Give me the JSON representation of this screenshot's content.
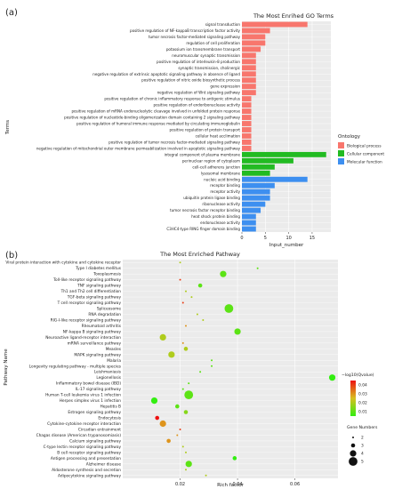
{
  "chart_data": [
    {
      "panel_label": "(a)",
      "type": "bar",
      "orientation": "horizontal",
      "title": "The Most Enrihed GO Terms",
      "xlabel": "Input_number",
      "ylabel": "Terms",
      "xlim": [
        0,
        19
      ],
      "xticks": [
        0,
        5,
        10,
        15
      ],
      "grid": true,
      "legend": {
        "title": "Ontology",
        "placement": "right",
        "entries": [
          {
            "label": "Biological process",
            "color": "#F8766D"
          },
          {
            "label": "Cellular component",
            "color": "#22BB22"
          },
          {
            "label": "Molecular function",
            "color": "#3D8FF0"
          }
        ]
      },
      "categories": [
        "signal transduction",
        "positive regulation of NF-kappaB transcription factor activity",
        "tumor necrosis factor-mediated signaling pathway",
        "regulation of cell proliferation",
        "potassium ion transmembrane transport",
        "neuromuscular synaptic transmission",
        "positive regulation of interleukin-8 production",
        "synaptic transmission, cholinergic",
        "negative regulation of extrinsic apoptotic signaling pathway in absence of ligand",
        "positive regulation of nitric oxide biosynthetic process",
        "gene expression",
        "negative regulation of Wnt signaling pathway",
        "positive regulation of chronic inflammatory response to antigenic stimulus",
        "positive regulation of endoribonuclease activity",
        "positive regulation of mRNA endonucleolytic cleavage involved in unfolded protein response",
        "positive regulation of nucleotide-binding oligomerization domain containing 2 signaling pathway",
        "positive regulation of humoral immune response mediated by circulating immunoglobulin",
        "positive regulation of protein transport",
        "cellular heat acclimation",
        "positive regulation of tumor necrosis factor-mediated signaling pathway",
        "negative regulation of mitochondrial outer membrane permeabilization involved in apoptotic signaling pathway",
        "integral component of plasma membrane",
        "perinuclear region of cytoplasm",
        "cell-cell adherens junction",
        "lysosomal membrane",
        "nucleic acid binding",
        "receptor binding",
        "receptor activity",
        "ubiquitin protein ligase binding",
        "ribonuclease activity",
        "tumor necrosis factor receptor binding",
        "heat shock protein binding",
        "endonuclease activity",
        "C3HC4-type RING finger domain binding"
      ],
      "values": [
        14,
        6,
        5,
        5,
        4,
        3,
        3,
        3,
        3,
        3,
        3,
        3,
        2,
        2,
        2,
        2,
        2,
        2,
        2,
        2,
        2,
        18,
        11,
        7,
        6,
        14,
        7,
        6,
        6,
        5,
        4,
        3,
        3,
        3
      ],
      "ontology": [
        "BP",
        "BP",
        "BP",
        "BP",
        "BP",
        "BP",
        "BP",
        "BP",
        "BP",
        "BP",
        "BP",
        "BP",
        "BP",
        "BP",
        "BP",
        "BP",
        "BP",
        "BP",
        "BP",
        "BP",
        "BP",
        "CC",
        "CC",
        "CC",
        "CC",
        "MF",
        "MF",
        "MF",
        "MF",
        "MF",
        "MF",
        "MF",
        "MF",
        "MF"
      ]
    },
    {
      "panel_label": "(b)",
      "type": "scatter",
      "title": "The Most Enriched Pathway",
      "xlabel": "Rich factor",
      "ylabel": "Pathway Name",
      "xlim": [
        0,
        0.075
      ],
      "xticks": [
        0.02,
        0.04,
        0.06
      ],
      "xtick_labels": [
        "0.02",
        "0.04",
        "0.06"
      ],
      "grid": true,
      "color_legend": {
        "title": "−log10(Qvalue)",
        "ticks": [
          "0.04",
          "0.03",
          "0.02",
          "0.01"
        ],
        "range": [
          0.005,
          0.045
        ],
        "placement": "right"
      },
      "size_legend": {
        "title": "Gene Numbers",
        "values": [
          2,
          3,
          4,
          5
        ],
        "labels": [
          "2",
          "3",
          "4",
          "5"
        ],
        "placement": "right"
      },
      "categories": [
        "Viral protein interaction with cytokine and cytokine receptor",
        "Type I diabetes mellitus",
        "Toxoplasmosis",
        "Toll-like receptor signaling pathway",
        "TNF signaling pathway",
        "Th1 and Th2 cell differentiation",
        "TGF-beta signaling pathway",
        "T cell receptor signaling pathway",
        "Spliceosome",
        "RNA degradation",
        "RIG-I-like receptor signaling pathway",
        "Rheumatoid arthritis",
        "NF-kappa B signaling pathway",
        "Neuroactive ligand-receptor interaction",
        "mRNA surveillance pathway",
        "Measles",
        "MAPK signaling pathway",
        "Malaria",
        "Longevity regulating pathway - multiple species",
        "Leishmaniasis",
        "Legionellosis",
        "Inflammatory bowel disease (IBD)",
        "IL-17 signaling pathway",
        "Human T-cell leukemia virus 1 infection",
        "Herpes simplex virus 1 infection",
        "Hepatitis B",
        "Estrogen signaling pathway",
        "Endocytosis",
        "Cytokine-cytokine receptor interaction",
        "Circadian entrainment",
        "Chagas disease (American trypanosomiasis)",
        "Calcium signaling pathway",
        "C-type lectin receptor signaling pathway",
        "B cell receptor signaling pathway",
        "Antigen processing and presentation",
        "Alzheimer disease",
        "Aldosterone synthesis and secretion",
        "Adipocytokine signaling pathway"
      ],
      "x": [
        0.02,
        0.047,
        0.035,
        0.02,
        0.027,
        0.022,
        0.024,
        0.021,
        0.037,
        0.026,
        0.028,
        0.022,
        0.04,
        0.014,
        0.021,
        0.022,
        0.017,
        0.031,
        0.031,
        0.027,
        0.073,
        0.023,
        0.021,
        0.023,
        0.011,
        0.019,
        0.022,
        0.012,
        0.014,
        0.02,
        0.019,
        0.016,
        0.021,
        0.022,
        0.039,
        0.023,
        0.022,
        0.029
      ],
      "gene_numbers": [
        2,
        2,
        4,
        2,
        3,
        2,
        2,
        2,
        5,
        2,
        2,
        2,
        4,
        4,
        2,
        3,
        4,
        2,
        2,
        2,
        4,
        2,
        2,
        5,
        4,
        3,
        3,
        3,
        4,
        2,
        2,
        3,
        2,
        2,
        3,
        4,
        2,
        2
      ],
      "qvalue_color": [
        0.02,
        0.01,
        0.01,
        0.04,
        0.01,
        0.02,
        0.02,
        0.04,
        0.01,
        0.02,
        0.02,
        0.03,
        0.01,
        0.02,
        0.03,
        0.02,
        0.02,
        0.01,
        0.01,
        0.01,
        0.005,
        0.01,
        0.01,
        0.01,
        0.005,
        0.01,
        0.015,
        0.045,
        0.03,
        0.04,
        0.03,
        0.03,
        0.02,
        0.02,
        0.005,
        0.01,
        0.02,
        0.02
      ]
    }
  ]
}
